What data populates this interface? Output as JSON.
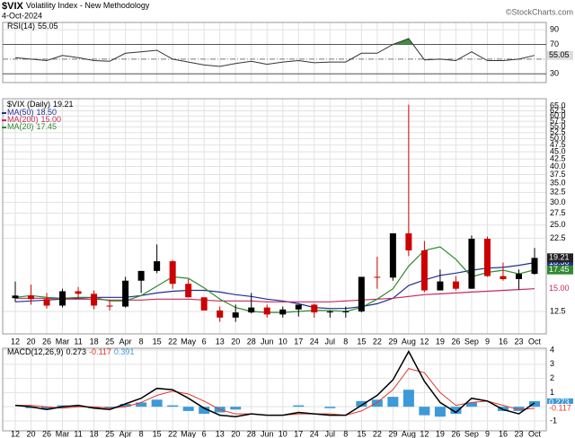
{
  "header": {
    "symbol": "$VIX",
    "name": "Volatility Index - New Methodology",
    "date": "4-Oct-2024",
    "source": "©StockCharts.com"
  },
  "chart_data": [
    {
      "type": "line",
      "title": "RSI(14)",
      "color": "#333333",
      "fill_color": "#3f8f3f",
      "values": [
        52,
        50,
        48,
        55,
        52,
        48,
        47,
        58,
        60,
        62,
        50,
        46,
        42,
        40,
        44,
        47,
        43,
        46,
        48,
        45,
        46,
        46,
        58,
        58,
        70,
        78,
        49,
        50,
        48,
        60,
        48,
        48,
        50,
        55.05
      ],
      "ylim": [
        18,
        100
      ],
      "yticks": [
        30,
        70,
        90
      ],
      "bands": [
        30,
        70
      ],
      "midline": 50,
      "grid": true
    },
    {
      "type": "candlestick",
      "title": "$VIX (Daily)",
      "log": true,
      "grid": true,
      "up_color": "#000000",
      "down_color": "#cc0000",
      "categories": [
        "12",
        "20",
        "26",
        "Mar",
        "11",
        "18",
        "25",
        "Apr",
        "8",
        "15",
        "22",
        "May",
        "6",
        "13",
        "20",
        "28",
        "Jun",
        "10",
        "17",
        "24",
        "Jul",
        "8",
        "15",
        "22",
        "29",
        "Aug",
        "12",
        "19",
        "26",
        "Sep",
        "9",
        "16",
        "23",
        "Oct"
      ],
      "open": [
        13.9,
        14.2,
        13.8,
        13.1,
        14.7,
        14.4,
        13.1,
        13.0,
        16.0,
        17.3,
        18.7,
        15.6,
        14.0,
        12.6,
        11.9,
        12.4,
        12.9,
        12.2,
        12.7,
        13.2,
        12.4,
        12.5,
        12.5,
        16.5,
        16.4,
        23.4,
        20.4,
        14.8,
        15.9,
        15.0,
        22.4,
        16.6,
        16.2,
        16.9
      ],
      "high": [
        15.9,
        15.5,
        14.5,
        15.0,
        15.2,
        14.8,
        13.6,
        16.5,
        17.3,
        21.4,
        18.9,
        16.2,
        14.0,
        13.0,
        13.2,
        14.5,
        13.2,
        13.0,
        13.2,
        13.3,
        12.6,
        13.0,
        16.5,
        19.4,
        23.4,
        65.7,
        22.0,
        17.5,
        16.6,
        23.0,
        22.8,
        18.5,
        17.5,
        20.8
      ],
      "low": [
        13.5,
        13.2,
        12.8,
        12.9,
        13.8,
        12.7,
        12.6,
        12.9,
        14.5,
        17.0,
        15.0,
        14.0,
        12.6,
        11.5,
        11.5,
        12.3,
        11.9,
        11.9,
        12.0,
        11.9,
        11.9,
        11.9,
        12.4,
        15.0,
        16.0,
        19.5,
        14.6,
        14.8,
        14.8,
        15.0,
        16.5,
        16.0,
        14.9,
        16.8
      ],
      "close": [
        14.2,
        13.8,
        13.1,
        14.7,
        14.4,
        13.1,
        13.0,
        16.0,
        17.3,
        18.7,
        15.6,
        14.0,
        12.6,
        11.9,
        12.4,
        12.9,
        12.2,
        12.7,
        13.2,
        12.4,
        12.5,
        12.5,
        16.5,
        16.4,
        23.4,
        20.4,
        14.8,
        15.9,
        15.0,
        22.4,
        16.6,
        16.2,
        16.9,
        19.21
      ],
      "series": [
        {
          "name": "MA(50)",
          "color": "#1f2f8f",
          "values": [
            13.5,
            13.6,
            13.7,
            13.8,
            13.9,
            14.0,
            14.0,
            14.0,
            14.2,
            14.5,
            14.7,
            14.8,
            14.8,
            14.6,
            14.3,
            14.1,
            13.8,
            13.6,
            13.3,
            12.9,
            12.8,
            12.8,
            13.0,
            13.3,
            13.9,
            15.4,
            16.1,
            16.7,
            17.0,
            17.4,
            17.7,
            17.8,
            18.1,
            18.5
          ],
          "value_labels": [
            null,
            null,
            null,
            null,
            null,
            null,
            null,
            null,
            null,
            null,
            null,
            null,
            null,
            null,
            null,
            null,
            null,
            null,
            null,
            null,
            null,
            null,
            null,
            null,
            null,
            null,
            null,
            null,
            null,
            null,
            null,
            null,
            null,
            "18.50"
          ]
        },
        {
          "name": "MA(200)",
          "color": "#c8285a",
          "values": [
            13.9,
            13.9,
            13.9,
            13.8,
            13.8,
            13.8,
            13.7,
            13.7,
            13.7,
            13.8,
            13.8,
            13.8,
            13.7,
            13.6,
            13.6,
            13.6,
            13.5,
            13.5,
            13.5,
            13.5,
            13.5,
            13.6,
            13.7,
            13.8,
            13.9,
            14.1,
            14.3,
            14.4,
            14.5,
            14.6,
            14.7,
            14.8,
            14.9,
            15.0
          ],
          "value_labels": [
            null,
            null,
            null,
            null,
            null,
            null,
            null,
            null,
            null,
            null,
            null,
            null,
            null,
            null,
            null,
            null,
            null,
            null,
            null,
            null,
            null,
            null,
            null,
            null,
            null,
            null,
            null,
            null,
            null,
            null,
            null,
            null,
            null,
            "15.00"
          ]
        },
        {
          "name": "MA(20)",
          "color": "#2e8b2e",
          "values": [
            14.0,
            14.2,
            14.0,
            13.9,
            14.0,
            14.0,
            13.6,
            13.6,
            14.2,
            15.3,
            16.5,
            16.3,
            15.1,
            13.8,
            12.9,
            12.5,
            12.4,
            12.4,
            12.5,
            12.6,
            12.6,
            12.5,
            12.9,
            13.8,
            15.0,
            18.0,
            20.4,
            21.0,
            19.0,
            16.5,
            17.1,
            17.4,
            16.9,
            17.45
          ]
        }
      ],
      "ylim": [
        10.44,
        68.9
      ],
      "yticks": [
        {
          "value": 12.5,
          "label": "12.5"
        },
        {
          "value": 22.5,
          "label": "22.5"
        },
        {
          "value": 25,
          "label": "25.0"
        },
        {
          "value": 27.5,
          "label": "27.5"
        },
        {
          "value": 30,
          "label": "30.0"
        },
        {
          "value": 32.5,
          "label": "32.5"
        },
        {
          "value": 35,
          "label": "35.0"
        },
        {
          "value": 37.5,
          "label": "37.5"
        },
        {
          "value": 40,
          "label": "40.0"
        },
        {
          "value": 42.5,
          "label": "42.5"
        },
        {
          "value": 45,
          "label": "45.0"
        },
        {
          "value": 47.5,
          "label": "47.5"
        },
        {
          "value": 50,
          "label": "50.0"
        },
        {
          "value": 52.5,
          "label": "52.5"
        },
        {
          "value": 55,
          "label": "55.0"
        },
        {
          "value": 57.5,
          "label": "57.5"
        },
        {
          "value": 60,
          "label": "60.0"
        },
        {
          "value": 62.5,
          "label": "62.5"
        },
        {
          "value": 65,
          "label": "65.0"
        }
      ]
    },
    {
      "type": "macd",
      "title": "MACD(12,26,9)",
      "grid": true,
      "categories": [
        "12",
        "20",
        "26",
        "Mar",
        "11",
        "18",
        "25",
        "Apr",
        "8",
        "15",
        "22",
        "May",
        "6",
        "13",
        "20",
        "28",
        "Jun",
        "10",
        "17",
        "24",
        "Jul",
        "8",
        "15",
        "22",
        "29",
        "Aug",
        "12",
        "19",
        "26",
        "Sep",
        "9",
        "16",
        "23",
        "Oct"
      ],
      "macd": [
        0.1,
        0.0,
        -0.2,
        0.0,
        0.1,
        -0.1,
        -0.2,
        0.2,
        0.6,
        1.3,
        1.2,
        0.6,
        -0.1,
        -0.6,
        -0.7,
        -0.5,
        -0.6,
        -0.6,
        -0.4,
        -0.5,
        -0.6,
        -0.6,
        0.1,
        0.8,
        1.9,
        3.9,
        1.8,
        0.3,
        -0.4,
        0.6,
        0.4,
        -0.2,
        -0.5,
        0.273
      ],
      "signal": [
        0.1,
        0.1,
        0.0,
        -0.1,
        0.0,
        0.0,
        -0.1,
        0.0,
        0.3,
        0.8,
        1.1,
        0.9,
        0.4,
        -0.2,
        -0.5,
        -0.5,
        -0.6,
        -0.6,
        -0.5,
        -0.5,
        -0.5,
        -0.6,
        -0.3,
        0.3,
        1.2,
        2.7,
        2.4,
        1.0,
        0.1,
        0.3,
        0.4,
        0.1,
        -0.2,
        -0.117
      ],
      "histogram": [
        0.0,
        -0.1,
        -0.2,
        0.1,
        0.1,
        -0.1,
        -0.1,
        0.2,
        0.3,
        0.5,
        0.1,
        -0.3,
        -0.5,
        -0.4,
        -0.2,
        0.0,
        0.0,
        0.0,
        0.1,
        0.0,
        -0.1,
        0.0,
        0.4,
        0.5,
        0.7,
        1.2,
        -0.6,
        -0.7,
        -0.5,
        0.3,
        0.0,
        -0.3,
        -0.3,
        0.391
      ],
      "macd_color": "#000000",
      "signal_color": "#e0392b",
      "histogram_color": "#3d9ad8",
      "ylim": [
        -1.7,
        4.13
      ],
      "yticks": [
        -1,
        0,
        1,
        2,
        3,
        4
      ]
    }
  ]
}
